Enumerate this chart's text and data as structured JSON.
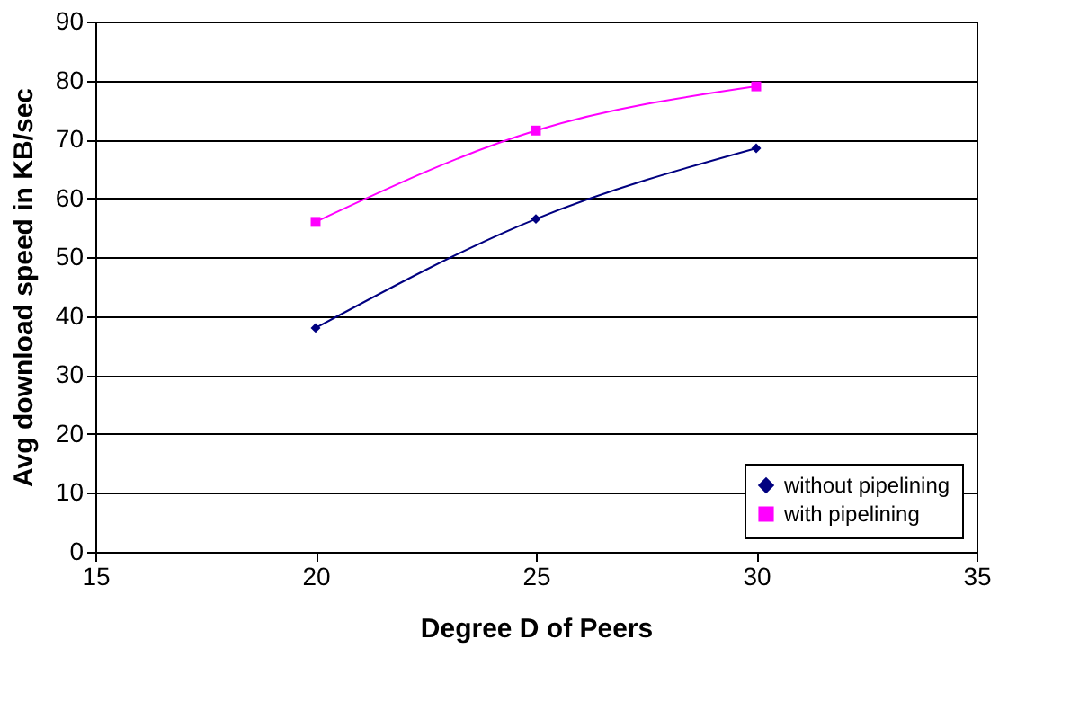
{
  "chart_data": {
    "type": "line",
    "xlabel": "Degree D of Peers",
    "ylabel": "Avg download speed in KB/sec",
    "x": [
      20,
      25,
      30
    ],
    "series": [
      {
        "name": "without pipelining",
        "color": "#000080",
        "values": [
          38,
          56.5,
          68.5
        ],
        "marker": "diamond"
      },
      {
        "name": "with pipelining",
        "color": "#ff00ff",
        "values": [
          56,
          71.5,
          79
        ],
        "marker": "square"
      }
    ],
    "xlim": [
      15,
      35
    ],
    "xticks": [
      15,
      20,
      25,
      30,
      35
    ],
    "ylim": [
      0,
      90
    ],
    "yticks": [
      0,
      10,
      20,
      30,
      40,
      50,
      60,
      70,
      80,
      90
    ],
    "grid": "y",
    "legend": "bottom right",
    "line_style": "solid"
  }
}
